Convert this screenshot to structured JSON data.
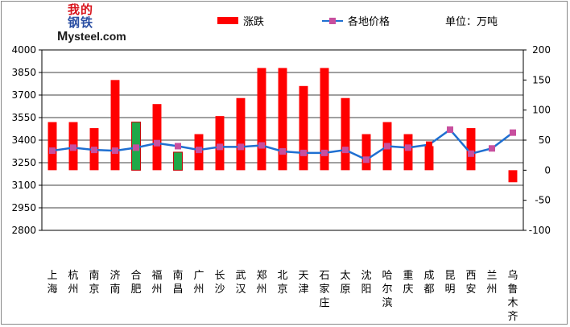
{
  "logo": {
    "cn_line1": "我的",
    "cn_line2": "钢铁",
    "en_big": "M",
    "en_rest": "ysteel",
    "en_suffix": ".com"
  },
  "legend": {
    "bar_label": "涨跌",
    "line_label": "各地价格",
    "unit": "单位：万吨"
  },
  "colors": {
    "bar_up": "#ff0000",
    "bar_special": "#1fa848",
    "line": "#1f6fd1",
    "marker": "#c84f9e",
    "marker_alt": "#ff0000"
  },
  "chart_data": {
    "type": "bar+line",
    "categories": [
      "上海",
      "杭州",
      "南京",
      "济南",
      "合肥",
      "福州",
      "南昌",
      "广州",
      "长沙",
      "武汉",
      "郑州",
      "北京",
      "天津",
      "石家庄",
      "太原",
      "沈阳",
      "哈尔滨",
      "重庆",
      "成都",
      "昆明",
      "西安",
      "兰州",
      "乌鲁木齐"
    ],
    "left_axis": {
      "ylim": [
        2800,
        4000
      ],
      "ticks": [
        2800,
        2950,
        3100,
        3250,
        3400,
        3550,
        3700,
        3850,
        4000
      ]
    },
    "right_axis": {
      "ylim": [
        -100,
        200
      ],
      "ticks": [
        -100,
        -50,
        0,
        50,
        100,
        150,
        200
      ]
    },
    "series": [
      {
        "name": "涨跌",
        "axis": "right",
        "style": "bar",
        "values": [
          80,
          80,
          70,
          150,
          80,
          110,
          30,
          60,
          90,
          120,
          170,
          170,
          140,
          170,
          120,
          60,
          80,
          60,
          40,
          0,
          70,
          0,
          -20
        ],
        "highlight_green": [
          4,
          6
        ]
      },
      {
        "name": "各地价格",
        "axis": "left",
        "style": "line",
        "values": [
          3330,
          3350,
          3335,
          3330,
          3350,
          3380,
          3360,
          3335,
          3355,
          3355,
          3365,
          3325,
          3315,
          3315,
          3335,
          3270,
          3360,
          3350,
          3370,
          3470,
          3310,
          3345,
          3450
        ]
      }
    ],
    "grid": true,
    "legend_position": "top"
  }
}
